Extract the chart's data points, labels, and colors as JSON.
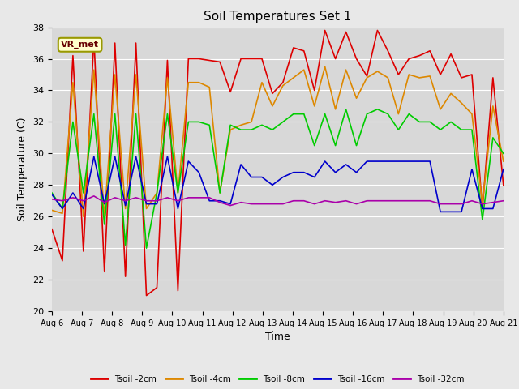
{
  "title": "Soil Temperatures Set 1",
  "xlabel": "Time",
  "ylabel": "Soil Temperature (C)",
  "ylim": [
    20,
    38
  ],
  "yticks": [
    20,
    22,
    24,
    26,
    28,
    30,
    32,
    34,
    36,
    38
  ],
  "annotation": "VR_met",
  "bg_color": "#e8e8e8",
  "plot_bg_color": "#d8d8d8",
  "line_colors": {
    "2cm": "#dd0000",
    "4cm": "#dd8800",
    "8cm": "#00cc00",
    "16cm": "#0000cc",
    "32cm": "#aa00aa"
  },
  "legend_labels": [
    "Tsoil -2cm",
    "Tsoil -4cm",
    "Tsoil -8cm",
    "Tsoil -16cm",
    "Tsoil -32cm"
  ],
  "x_tick_labels": [
    "Aug 6",
    "Aug 7",
    "Aug 8",
    "Aug 9",
    "Aug 10",
    "Aug 11",
    "Aug 12",
    "Aug 13",
    "Aug 14",
    "Aug 15",
    "Aug 16",
    "Aug 17",
    "Aug 18",
    "Aug 19",
    "Aug 20",
    "Aug 21"
  ],
  "tsoil_2cm": [
    25.2,
    23.2,
    36.2,
    23.8,
    37.3,
    22.5,
    37.0,
    22.2,
    37.0,
    21.0,
    21.5,
    35.9,
    21.3,
    36.0,
    36.0,
    35.9,
    35.8,
    33.9,
    36.0,
    36.0,
    36.0,
    33.8,
    34.5,
    36.7,
    36.5,
    34.0,
    37.8,
    36.0,
    37.7,
    36.0,
    34.9,
    37.8,
    36.5,
    35.0,
    36.0,
    36.2,
    36.5,
    35.0,
    36.3,
    34.8,
    35.0,
    26.5,
    34.8,
    28.0
  ],
  "tsoil_4cm": [
    26.4,
    26.2,
    34.5,
    26.0,
    35.3,
    26.0,
    35.0,
    26.5,
    35.0,
    26.5,
    27.5,
    34.8,
    27.5,
    34.5,
    34.5,
    34.2,
    27.5,
    31.5,
    31.8,
    32.0,
    34.5,
    33.0,
    34.3,
    34.8,
    35.3,
    33.0,
    35.5,
    32.8,
    35.3,
    33.5,
    34.8,
    35.2,
    34.8,
    32.5,
    35.0,
    34.8,
    34.9,
    32.8,
    33.8,
    33.2,
    32.5,
    26.8,
    33.0,
    29.5
  ],
  "tsoil_8cm": [
    27.5,
    26.5,
    32.0,
    27.5,
    32.5,
    25.5,
    32.5,
    24.2,
    32.5,
    24.0,
    27.5,
    32.5,
    27.5,
    32.0,
    32.0,
    31.8,
    27.5,
    31.8,
    31.5,
    31.5,
    31.8,
    31.5,
    32.0,
    32.5,
    32.5,
    30.5,
    32.5,
    30.5,
    32.8,
    30.5,
    32.5,
    32.8,
    32.5,
    31.5,
    32.5,
    32.0,
    32.0,
    31.5,
    32.0,
    31.5,
    31.5,
    25.8,
    31.0,
    30.0
  ],
  "tsoil_16cm": [
    27.4,
    26.5,
    27.5,
    26.5,
    29.8,
    26.8,
    29.8,
    26.7,
    29.8,
    26.8,
    26.8,
    29.8,
    26.5,
    29.5,
    28.8,
    27.0,
    27.0,
    26.8,
    29.3,
    28.5,
    28.5,
    28.0,
    28.5,
    28.8,
    28.8,
    28.5,
    29.5,
    28.8,
    29.3,
    28.8,
    29.5,
    29.5,
    29.5,
    29.5,
    29.5,
    29.5,
    29.5,
    26.3,
    26.3,
    26.3,
    29.0,
    26.5,
    26.5,
    29.0
  ],
  "tsoil_32cm": [
    27.1,
    27.0,
    27.2,
    27.0,
    27.3,
    26.9,
    27.2,
    27.0,
    27.2,
    27.0,
    27.0,
    27.2,
    27.0,
    27.2,
    27.2,
    27.2,
    26.9,
    26.7,
    26.9,
    26.8,
    26.8,
    26.8,
    26.8,
    27.0,
    27.0,
    26.8,
    27.0,
    26.9,
    27.0,
    26.8,
    27.0,
    27.0,
    27.0,
    27.0,
    27.0,
    27.0,
    27.0,
    26.8,
    26.8,
    26.8,
    27.0,
    26.8,
    26.9,
    27.0
  ]
}
